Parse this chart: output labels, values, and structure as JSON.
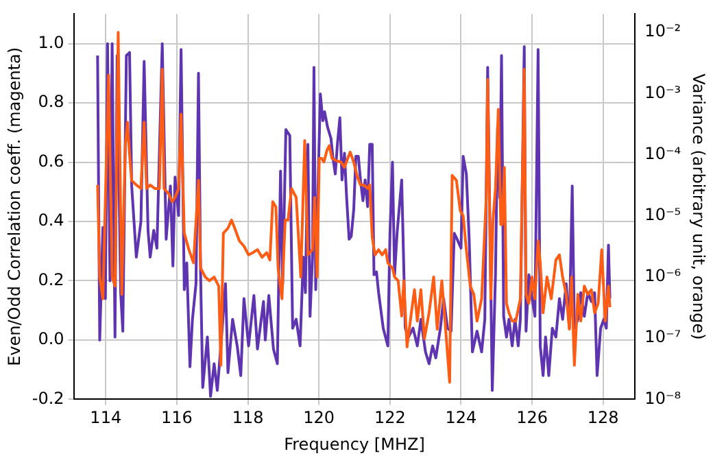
{
  "chart_data": {
    "type": "line",
    "xlabel": "Frequency [MHZ]",
    "ylabel": "Even/Odd Correlation coeff. (magenta)",
    "y2label": "Variance (arbitrary unit, orange)",
    "xlim": [
      113.1,
      128.9
    ],
    "xticks": [
      114,
      116,
      118,
      120,
      122,
      124,
      126,
      128
    ],
    "ylim": [
      -0.2,
      1.1
    ],
    "yticks": [
      -0.2,
      {
        "value": 0,
        "label": "0.0"
      },
      0.2,
      0.4,
      0.6,
      0.8,
      {
        "value": 1,
        "label": "1.0"
      }
    ],
    "y2lim": [
      1e-08,
      0.02
    ],
    "y2ticks": [
      {
        "value": 1e-08,
        "label": "10⁻⁸"
      },
      {
        "value": 1e-07,
        "label": "10⁻⁷"
      },
      {
        "value": 1e-06,
        "label": "10⁻⁶"
      },
      {
        "value": 1e-05,
        "label": "10⁻⁵"
      },
      {
        "value": 0.0001,
        "label": "10⁻⁴"
      },
      {
        "value": 0.001,
        "label": "10⁻³"
      },
      {
        "value": 0.01,
        "label": "10⁻²"
      }
    ],
    "log": "y2",
    "grid": true,
    "marker": "none",
    "legend": false,
    "series": [
      {
        "color": "#5e34b0",
        "x": [
          113.77,
          113.83,
          113.92,
          113.99,
          114.05,
          114.12,
          114.18,
          114.26,
          114.32,
          114.42,
          114.48,
          114.58,
          114.67,
          114.73,
          114.86,
          114.99,
          115.08,
          115.19,
          115.25,
          115.35,
          115.44,
          115.59,
          115.7,
          115.82,
          115.89,
          115.95,
          116.05,
          116.12,
          116.21,
          116.28,
          116.37,
          116.44,
          116.54,
          116.61,
          116.67,
          116.73,
          116.86,
          116.95,
          117.05,
          117.14,
          117.24,
          117.37,
          117.44,
          117.57,
          117.7,
          117.8,
          117.89,
          118.02,
          118.17,
          118.27,
          118.44,
          118.49,
          118.59,
          118.72,
          118.83,
          118.92,
          118.98,
          119.07,
          119.18,
          119.26,
          119.36,
          119.47,
          119.56,
          119.62,
          119.69,
          119.75,
          119.82,
          119.86,
          119.91,
          119.98,
          120.04,
          120.11,
          120.16,
          120.24,
          120.34,
          120.39,
          120.46,
          120.52,
          120.59,
          120.65,
          120.72,
          120.78,
          120.85,
          120.91,
          120.98,
          121.04,
          121.11,
          121.17,
          121.24,
          121.3,
          121.37,
          121.43,
          121.5,
          121.55,
          121.62,
          121.68,
          121.81,
          121.94,
          122.0,
          122.07,
          122.13,
          122.2,
          122.33,
          122.43,
          122.52,
          122.65,
          122.77,
          122.87,
          123.0,
          123.1,
          123.2,
          123.29,
          123.42,
          123.51,
          123.62,
          123.72,
          123.81,
          123.89,
          124.0,
          124.06,
          124.15,
          124.23,
          124.32,
          124.45,
          124.58,
          124.67,
          124.75,
          124.88,
          124.97,
          125.03,
          125.09,
          125.14,
          125.2,
          125.28,
          125.35,
          125.44,
          125.52,
          125.61,
          125.67,
          125.78,
          125.83,
          125.91,
          126.0,
          126.08,
          126.17,
          126.23,
          126.31,
          126.38,
          126.47,
          126.57,
          126.67,
          126.77,
          126.86,
          126.96,
          127.05,
          127.13,
          127.19,
          127.29,
          127.37,
          127.47,
          127.57,
          127.67,
          127.76,
          127.83,
          127.93,
          128.02,
          128.09,
          128.15,
          128.19
        ],
        "values": [
          0.96,
          0.0,
          0.38,
          0.14,
          1.0,
          0.2,
          1.0,
          0.01,
          0.96,
          0.16,
          0.03,
          0.96,
          0.97,
          0.52,
          0.28,
          0.4,
          0.94,
          0.37,
          0.28,
          0.37,
          0.31,
          1.0,
          0.34,
          0.52,
          0.25,
          0.55,
          0.42,
          0.98,
          0.17,
          0.26,
          -0.09,
          0.07,
          0.19,
          0.9,
          0.22,
          -0.16,
          0.01,
          -0.19,
          -0.08,
          -0.17,
          -0.02,
          0.19,
          -0.11,
          0.07,
          -0.02,
          -0.12,
          0.14,
          -0.02,
          0.15,
          -0.03,
          0.13,
          0.0,
          0.15,
          -0.03,
          -0.08,
          0.57,
          0.19,
          0.71,
          0.69,
          0.04,
          0.07,
          -0.02,
          0.28,
          0.16,
          0.66,
          0.08,
          0.28,
          0.92,
          0.17,
          0.54,
          0.83,
          0.74,
          0.77,
          0.72,
          0.68,
          0.62,
          0.56,
          0.66,
          0.75,
          0.54,
          0.63,
          0.48,
          0.34,
          0.35,
          0.44,
          0.62,
          0.62,
          0.54,
          0.47,
          0.54,
          0.45,
          0.66,
          0.66,
          0.22,
          0.23,
          0.16,
          0.04,
          -0.02,
          0.36,
          0.6,
          0.22,
          0.36,
          0.54,
          0.04,
          0.01,
          0.04,
          -0.02,
          0.07,
          -0.04,
          -0.08,
          -0.02,
          -0.06,
          0.04,
          0.14,
          0.04,
          0.03,
          0.36,
          0.34,
          0.31,
          0.62,
          0.56,
          0.34,
          -0.04,
          0.03,
          -0.04,
          0.07,
          0.92,
          -0.17,
          0.22,
          0.72,
          0.48,
          0.96,
          0.08,
          0.01,
          0.07,
          -0.02,
          0.07,
          -0.02,
          0.07,
          0.99,
          0.03,
          0.22,
          0.14,
          0.08,
          0.98,
          -0.02,
          -0.12,
          0.01,
          -0.12,
          0.04,
          0.01,
          0.14,
          0.07,
          0.19,
          0.04,
          0.52,
          0.04,
          0.07,
          0.16,
          0.08,
          0.16,
          0.13,
          0.16,
          -0.12,
          0.04,
          0.07,
          0.04,
          0.32,
          0.14
        ]
      },
      {
        "color": "#fc5c14",
        "axis": "y2",
        "x": [
          113.77,
          113.83,
          113.92,
          114.02,
          114.08,
          114.18,
          114.26,
          114.35,
          114.45,
          114.55,
          114.61,
          114.67,
          114.73,
          114.86,
          114.99,
          115.08,
          115.15,
          115.25,
          115.38,
          115.51,
          115.59,
          115.64,
          115.77,
          115.87,
          115.95,
          116.05,
          116.12,
          116.21,
          116.34,
          116.47,
          116.61,
          116.67,
          116.8,
          116.92,
          117.05,
          117.18,
          117.24,
          117.31,
          117.44,
          117.54,
          117.63,
          117.76,
          117.89,
          118.02,
          118.14,
          118.27,
          118.4,
          118.53,
          118.62,
          118.7,
          118.79,
          118.85,
          118.96,
          119.05,
          119.13,
          119.23,
          119.36,
          119.49,
          119.6,
          119.69,
          119.82,
          119.88,
          119.95,
          120.01,
          120.08,
          120.14,
          120.23,
          120.29,
          120.37,
          120.5,
          120.62,
          120.72,
          120.81,
          120.88,
          120.98,
          121.07,
          121.17,
          121.27,
          121.37,
          121.43,
          121.5,
          121.58,
          121.68,
          121.78,
          121.88,
          121.94,
          122.07,
          122.13,
          122.23,
          122.33,
          122.39,
          122.48,
          122.59,
          122.69,
          122.77,
          122.87,
          122.97,
          123.1,
          123.23,
          123.33,
          123.46,
          123.55,
          123.68,
          123.75,
          123.87,
          123.98,
          124.06,
          124.15,
          124.26,
          124.36,
          124.45,
          124.58,
          124.71,
          124.75,
          124.84,
          124.9,
          124.97,
          125.05,
          125.12,
          125.16,
          125.22,
          125.28,
          125.35,
          125.44,
          125.54,
          125.67,
          125.78,
          125.83,
          125.91,
          126.0,
          126.08,
          126.17,
          126.23,
          126.31,
          126.42,
          126.54,
          126.67,
          126.77,
          126.86,
          126.96,
          127.05,
          127.11,
          127.19,
          127.29,
          127.37,
          127.47,
          127.57,
          127.67,
          127.76,
          127.86,
          127.96,
          128.06,
          128.15,
          128.19
        ],
        "values": [
          3.2e-05,
          1e-06,
          4.4e-07,
          0.0001,
          0.002,
          1e-06,
          7.1e-07,
          0.01,
          5.2e-07,
          0.00014,
          0.00034,
          0.0001,
          3.8e-05,
          3.2e-05,
          2.8e-05,
          0.00034,
          2.8e-05,
          3.2e-05,
          2.8e-05,
          2.8e-05,
          0.0025,
          2.8e-05,
          2.3e-05,
          1.7e-05,
          2e-05,
          2.8e-05,
          0.00046,
          5.2e-06,
          2.8e-06,
          1.7e-06,
          3.8e-05,
          1.4e-06,
          1e-06,
          8.7e-07,
          1e-06,
          7.1e-07,
          3.6e-08,
          5.2e-06,
          6.3e-06,
          8.5e-06,
          6.3e-06,
          3.9e-06,
          3.2e-06,
          2.3e-06,
          2.5e-06,
          2.8e-06,
          2.1e-06,
          2.5e-06,
          1.9e-06,
          1.7e-05,
          1.4e-05,
          1.4e-06,
          4.4e-07,
          8.5e-06,
          8.5e-06,
          2.8e-05,
          2e-05,
          1e-06,
          0.00017,
          2.3e-06,
          2.8e-06,
          2e-05,
          1e-06,
          8.7e-05,
          8.7e-05,
          7.6e-05,
          0.00012,
          0.00014,
          8.7e-05,
          7.9e-05,
          7.6e-05,
          6.2e-05,
          8.7e-05,
          0.00011,
          7.6e-05,
          4.6e-05,
          3.2e-05,
          3.2e-05,
          2.8e-05,
          3.2e-05,
          4.5e-06,
          2.3e-06,
          2.8e-06,
          2.3e-06,
          2.8e-06,
          1.7e-06,
          1.4e-06,
          1e-06,
          8.7e-07,
          2.3e-07,
          8.7e-07,
          7.2e-08,
          2.3e-07,
          6.2e-07,
          1.9e-07,
          6.2e-07,
          9.8e-08,
          2.6e-07,
          1e-06,
          1.4e-07,
          8.7e-07,
          1.9e-07,
          1.9e-08,
          4.6e-05,
          3.8e-05,
          1.2e-05,
          1e-05,
          2.8e-06,
          7.1e-07,
          5.2e-07,
          1.9e-07,
          4.4e-07,
          2e-05,
          0.0017,
          4.4e-07,
          8.5e-06,
          2.8e-05,
          0.00055,
          7.2e-06,
          7.2e-06,
          6.2e-05,
          3.7e-07,
          2.6e-07,
          1.9e-07,
          1.9e-07,
          4.4e-07,
          0.0025,
          5.2e-07,
          3.7e-07,
          1e-06,
          4.4e-07,
          3.9e-06,
          1.7e-06,
          2.6e-07,
          1e-06,
          4.4e-07,
          1.9e-06,
          2.3e-06,
          1e-06,
          5.2e-07,
          1.4e-07,
          1e-06,
          3.6e-08,
          5.2e-07,
          1.9e-07,
          7.1e-07,
          5.2e-07,
          6.2e-07,
          2.6e-07,
          3.7e-07,
          2.8e-06,
          1.9e-07,
          7.1e-07,
          3.2e-07
        ]
      }
    ]
  }
}
